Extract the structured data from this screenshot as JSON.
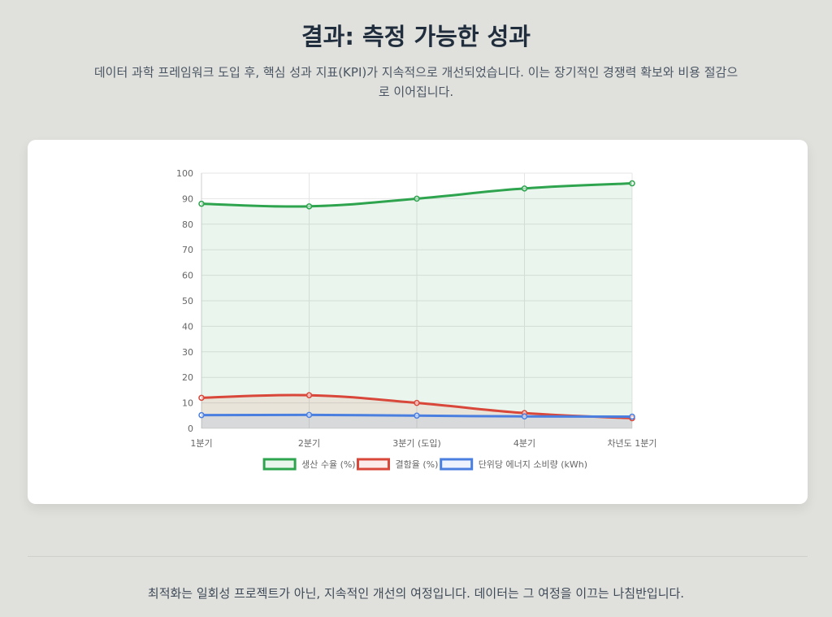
{
  "header": {
    "title": "결과: 측정 가능한 성과",
    "subtitle": "데이터 과학 프레임워크 도입 후, 핵심 성과 지표(KPI)가 지속적으로 개선되었습니다. 이는 장기적인 경쟁력 확보와 비용 절감으로 이어집니다."
  },
  "footer": {
    "text": "최적화는 일회성 프로젝트가 아닌, 지속적인 개선의 여정입니다. 데이터는 그 여정을 이끄는 나침반입니다."
  },
  "chart_data": {
    "type": "line",
    "categories": [
      "1분기",
      "2분기",
      "3분기 (도입)",
      "4분기",
      "차년도 1분기"
    ],
    "series": [
      {
        "name": "생산 수율 (%)",
        "values": [
          88,
          87,
          90,
          94,
          96
        ],
        "color": "#2ea44f",
        "fill": "rgba(46,164,79,0.10)"
      },
      {
        "name": "결함율 (%)",
        "values": [
          12,
          13,
          10,
          6,
          4
        ],
        "color": "#d9473a",
        "fill": "rgba(217,71,58,0.10)"
      },
      {
        "name": "단위당 에너지 소비량 (kWh)",
        "values": [
          5.2,
          5.3,
          5.0,
          4.7,
          4.6
        ],
        "color": "#4a7fe0",
        "fill": "rgba(74,127,224,0.10)"
      }
    ],
    "ylim": [
      0,
      100
    ],
    "yticks": [
      0,
      10,
      20,
      30,
      40,
      50,
      60,
      70,
      80,
      90,
      100
    ],
    "grid": true,
    "legend_position": "bottom"
  }
}
